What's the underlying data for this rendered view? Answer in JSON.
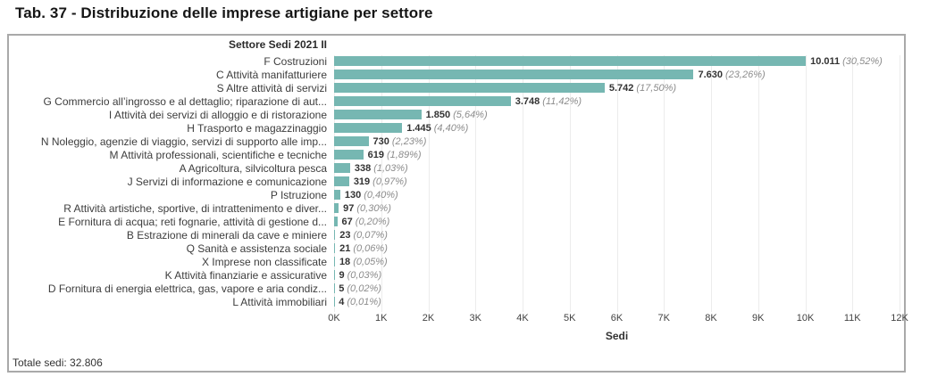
{
  "page": {
    "title": "Tab. 37 - Distribuzione delle imprese artigiane per settore"
  },
  "chart_data": {
    "type": "bar",
    "orientation": "horizontal",
    "header": "Settore Sedi 2021 II",
    "xlabel": "Sedi",
    "footer": "Totale sedi: 32.806",
    "total": 32806,
    "xlim": [
      0,
      12000
    ],
    "x_ticks": [
      "0K",
      "1K",
      "2K",
      "3K",
      "4K",
      "5K",
      "6K",
      "7K",
      "8K",
      "9K",
      "10K",
      "11K",
      "12K"
    ],
    "grid": "vertical-light",
    "bar_color": "#76b7b2",
    "rows": [
      {
        "label": "F Costruzioni",
        "value": 10011,
        "value_label": "10.011",
        "pct_label": "(30,52%)"
      },
      {
        "label": "C Attività manifatturiere",
        "value": 7630,
        "value_label": "7.630",
        "pct_label": "(23,26%)"
      },
      {
        "label": "S Altre attività di servizi",
        "value": 5742,
        "value_label": "5.742",
        "pct_label": "(17,50%)"
      },
      {
        "label": "G Commercio all’ingrosso e al dettaglio; riparazione di aut...",
        "value": 3748,
        "value_label": "3.748",
        "pct_label": "(11,42%)"
      },
      {
        "label": "I Attività dei servizi di alloggio e di ristorazione",
        "value": 1850,
        "value_label": "1.850",
        "pct_label": "(5,64%)"
      },
      {
        "label": "H Trasporto e magazzinaggio",
        "value": 1445,
        "value_label": "1.445",
        "pct_label": "(4,40%)"
      },
      {
        "label": "N Noleggio, agenzie di viaggio, servizi di supporto alle imp...",
        "value": 730,
        "value_label": "730",
        "pct_label": "(2,23%)"
      },
      {
        "label": "M Attività professionali, scientifiche e tecniche",
        "value": 619,
        "value_label": "619",
        "pct_label": "(1,89%)"
      },
      {
        "label": "A Agricoltura, silvicoltura pesca",
        "value": 338,
        "value_label": "338",
        "pct_label": "(1,03%)"
      },
      {
        "label": "J Servizi di informazione e comunicazione",
        "value": 319,
        "value_label": "319",
        "pct_label": "(0,97%)"
      },
      {
        "label": "P Istruzione",
        "value": 130,
        "value_label": "130",
        "pct_label": "(0,40%)"
      },
      {
        "label": "R Attività artistiche, sportive, di intrattenimento e diver...",
        "value": 97,
        "value_label": "97",
        "pct_label": "(0,30%)"
      },
      {
        "label": "E Fornitura di acqua; reti fognarie, attività di gestione d...",
        "value": 67,
        "value_label": "67",
        "pct_label": "(0,20%)"
      },
      {
        "label": "B Estrazione di minerali da cave e miniere",
        "value": 23,
        "value_label": "23",
        "pct_label": "(0,07%)"
      },
      {
        "label": "Q Sanità e assistenza sociale",
        "value": 21,
        "value_label": "21",
        "pct_label": "(0,06%)"
      },
      {
        "label": "X Imprese non classificate",
        "value": 18,
        "value_label": "18",
        "pct_label": "(0,05%)"
      },
      {
        "label": "K Attività finanziarie e assicurative",
        "value": 9,
        "value_label": "9",
        "pct_label": "(0,03%)"
      },
      {
        "label": "D Fornitura di energia elettrica, gas, vapore e aria condiz...",
        "value": 5,
        "value_label": "5",
        "pct_label": "(0,02%)"
      },
      {
        "label": "L Attività immobiliari",
        "value": 4,
        "value_label": "4",
        "pct_label": "(0,01%)"
      }
    ]
  }
}
